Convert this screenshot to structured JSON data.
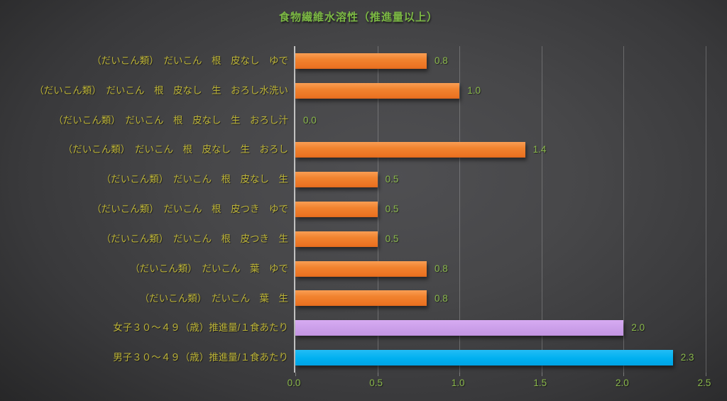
{
  "title": "食物繊維水溶性（推進量以上）",
  "colors": {
    "title_green": "#7cb944",
    "value_label_green": "#8ab84b",
    "category_label_olive": "#bdb437",
    "bar_orange": "#ed7d31",
    "bar_purple": "#cb9fe9",
    "bar_blue": "#00b0f0",
    "axis_line": "#c2c2c2",
    "gridline": "#9a9a9a",
    "background_center": "#4f4f52",
    "background_edge": "#1d1d1e"
  },
  "chart_data": {
    "type": "bar",
    "orientation": "horizontal",
    "title": "食物繊維水溶性（推進量以上）",
    "categories": [
      "（だいこん類）　だいこん　根　皮なし　ゆで",
      "（だいこん類）　だいこん　根　皮なし　生　おろし水洗い",
      "（だいこん類）　だいこん　根　皮なし　生　おろし汁",
      "（だいこん類）　だいこん　根　皮なし　生　おろし",
      "（だいこん類）　だいこん　根　皮なし　生",
      "（だいこん類）　だいこん　根　皮つき　ゆで",
      "（だいこん類）　だいこん　根　皮つき　生",
      "（だいこん類）　だいこん　葉　ゆで",
      "（だいこん類）　だいこん　葉　生",
      "女子３０～４９（歳）推進量/１食あたり",
      "男子３０～４９（歳）推進量/１食あたり"
    ],
    "values": [
      0.8,
      1.0,
      0.0,
      1.4,
      0.5,
      0.5,
      0.5,
      0.8,
      0.8,
      2.0,
      2.3
    ],
    "value_labels": [
      "0.8",
      "1.0",
      "0.0",
      "1.4",
      "0.5",
      "0.5",
      "0.5",
      "0.8",
      "0.8",
      "2.0",
      "2.3"
    ],
    "bar_color_keys": [
      "orange",
      "orange",
      "orange",
      "orange",
      "orange",
      "orange",
      "orange",
      "orange",
      "orange",
      "purple",
      "blue"
    ],
    "xlabel": "",
    "ylabel": "",
    "xlim": [
      0.0,
      2.5
    ],
    "x_ticks": [
      "0.0",
      "0.5",
      "1.0",
      "1.5",
      "2.0",
      "2.5"
    ],
    "grid": true,
    "legend": "none"
  }
}
